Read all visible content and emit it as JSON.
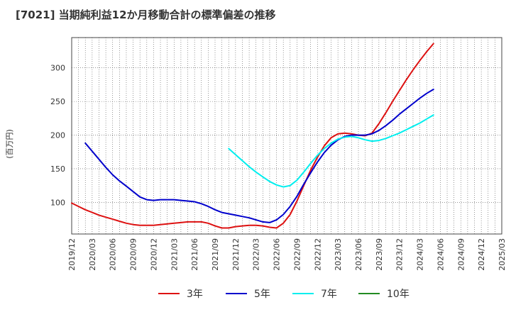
{
  "chart_data": {
    "type": "line",
    "title": "[7021]  当期純利益12か月移動合計の標準偏差の推移",
    "ylabel": "(百万円)",
    "xlabel": "",
    "ylim": [
      53,
      345
    ],
    "yticks": [
      100,
      150,
      200,
      250,
      300
    ],
    "grid": true,
    "legend_position": "bottom",
    "x_ticks": [
      "2019/12",
      "2020/03",
      "2020/06",
      "2020/09",
      "2020/12",
      "2021/03",
      "2021/06",
      "2021/09",
      "2021/12",
      "2022/03",
      "2022/06",
      "2022/09",
      "2022/12",
      "2023/03",
      "2023/06",
      "2023/09",
      "2023/12",
      "2024/03",
      "2024/06",
      "2024/09",
      "2024/12",
      "2025/03"
    ],
    "series": [
      {
        "name": "3年",
        "color": "#dd1111",
        "start_index": 0,
        "values": [
          99,
          94,
          89,
          85,
          81,
          78,
          75,
          72,
          69,
          67,
          66,
          66,
          66,
          67,
          68,
          69,
          70,
          71,
          71,
          71,
          69,
          65,
          62,
          62,
          64,
          65,
          66,
          66,
          65,
          63,
          62,
          69,
          82,
          102,
          125,
          148,
          167,
          184,
          196,
          202,
          203,
          202,
          200,
          199,
          203,
          217,
          233,
          250,
          266,
          282,
          297,
          311,
          324,
          336
        ]
      },
      {
        "name": "5年",
        "color": "#0000cc",
        "start_index": 2,
        "values": [
          188,
          176,
          164,
          152,
          141,
          132,
          124,
          116,
          108,
          104,
          103,
          104,
          104,
          104,
          103,
          102,
          101,
          98,
          94,
          89,
          85,
          83,
          81,
          79,
          77,
          74,
          71,
          70,
          74,
          82,
          94,
          109,
          127,
          144,
          160,
          174,
          185,
          193,
          198,
          200,
          200,
          200,
          202,
          207,
          214,
          222,
          231,
          239,
          247,
          255,
          262,
          268
        ]
      },
      {
        "name": "7年",
        "color": "#00eeee",
        "start_index": 23,
        "values": [
          180,
          171,
          162,
          153,
          145,
          138,
          131,
          126,
          123,
          125,
          133,
          145,
          158,
          170,
          180,
          188,
          194,
          197,
          198,
          196,
          193,
          191,
          192,
          195,
          199,
          203,
          208,
          213,
          218,
          224,
          230
        ]
      },
      {
        "name": "10年",
        "color": "#228b22",
        "start_index": 0,
        "values": []
      }
    ]
  }
}
